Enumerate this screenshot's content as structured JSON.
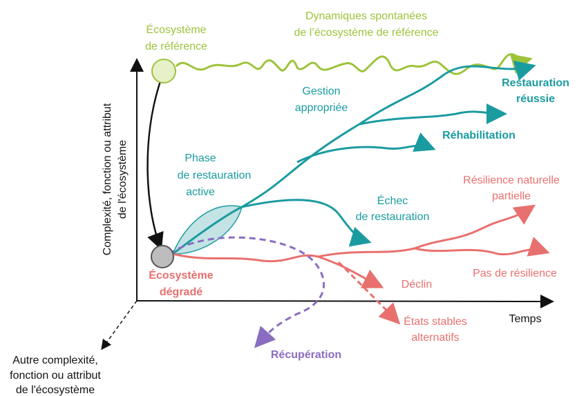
{
  "axes": {
    "y": [
      "Complexité, fonction ou attribut",
      "de l'écosystème"
    ],
    "x": "Temps",
    "z": [
      "Autre complexité,",
      "fonction ou attribut",
      "de l'écosystème"
    ]
  },
  "labels": {
    "reference": [
      "Écosystème",
      "de référence"
    ],
    "dynamics": [
      "Dynamiques spontanées",
      "de l’écosystème de référence"
    ],
    "management": [
      "Gestion",
      "appropriée"
    ],
    "success": [
      "Restauration",
      "réussie"
    ],
    "rehabilitation": "Réhabilitation",
    "active": [
      "Phase",
      "de restauration",
      "active"
    ],
    "failure": [
      "Échec",
      "de restauration"
    ],
    "partial": [
      "Résilience naturelle",
      "partielle"
    ],
    "none": "Pas de résilience",
    "degraded": [
      "Écosystème",
      "dégradé"
    ],
    "decline": "Déclin",
    "alternative": [
      "États stables",
      "alternatifs"
    ],
    "recovery": "Récupération"
  }
}
